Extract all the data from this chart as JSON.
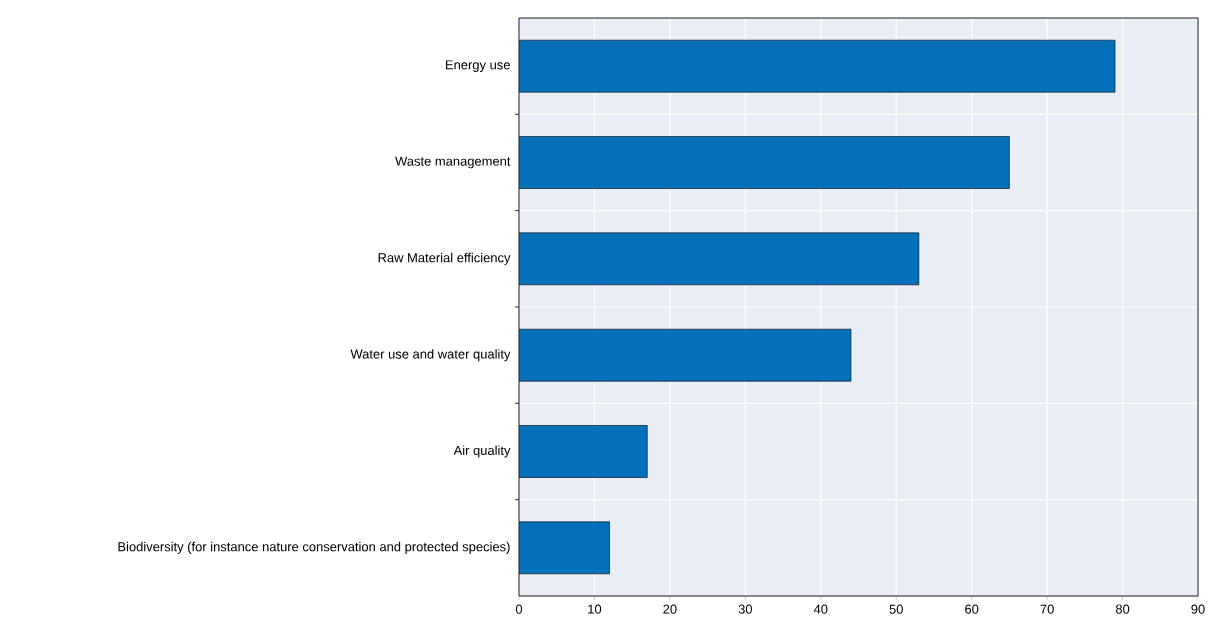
{
  "chart_data": {
    "type": "bar",
    "orientation": "horizontal",
    "categories": [
      "Energy use",
      "Waste management",
      "Raw Material efficiency",
      "Water use and water quality",
      "Air quality",
      "Biodiversity (for instance nature conservation and protected species)"
    ],
    "values": [
      79,
      65,
      53,
      44,
      17,
      12
    ],
    "color": "#0570ba",
    "xlim": [
      0,
      90
    ],
    "xticks": [
      0,
      10,
      20,
      30,
      40,
      50,
      60,
      70,
      80,
      90
    ],
    "grid": true
  }
}
